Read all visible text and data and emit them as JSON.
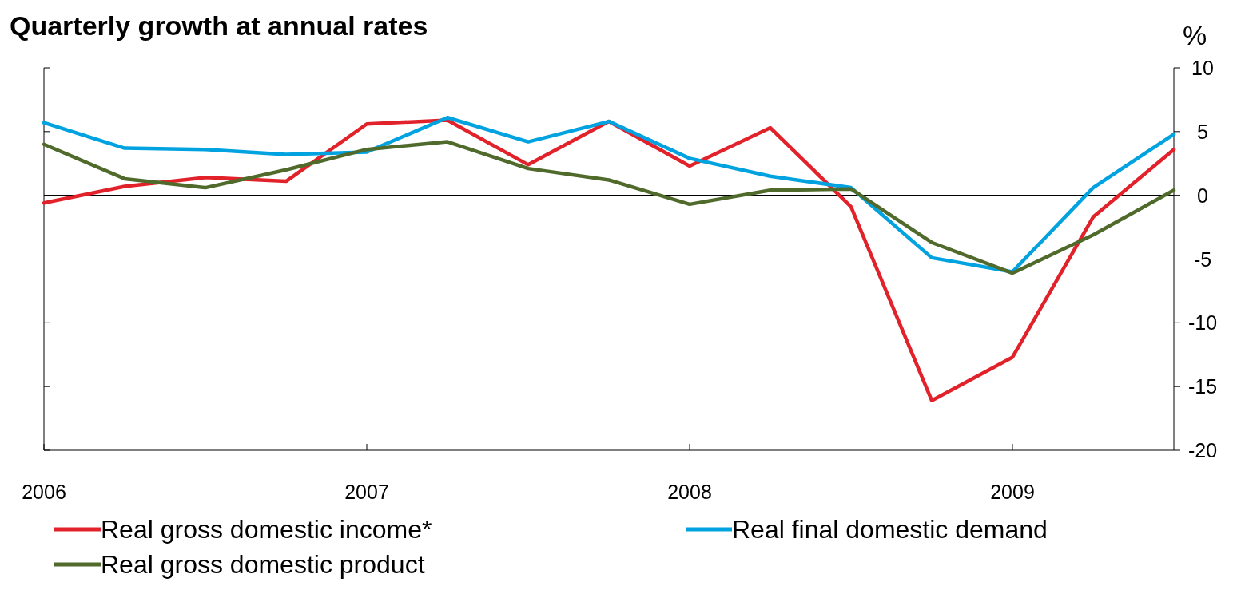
{
  "chart_data": {
    "type": "line",
    "title": "Quarterly growth at annual rates",
    "ylabel": "%",
    "x": [
      2006,
      2006.25,
      2006.5,
      2006.75,
      2007,
      2007.25,
      2007.5,
      2007.75,
      2008,
      2008.25,
      2008.5,
      2008.75,
      2009,
      2009.25,
      2009.5
    ],
    "series": [
      {
        "name": "Real gross domestic income*",
        "color": "#e2222b",
        "values": [
          -0.6,
          0.7,
          1.4,
          1.1,
          5.6,
          5.9,
          2.4,
          5.8,
          2.3,
          5.3,
          -0.9,
          -16.1,
          -12.7,
          -1.7,
          3.6
        ]
      },
      {
        "name": "Real final domestic demand",
        "color": "#00a3e0",
        "values": [
          5.7,
          3.7,
          3.6,
          3.2,
          3.4,
          6.1,
          4.2,
          5.8,
          2.9,
          1.5,
          0.6,
          -4.9,
          -6.0,
          0.6,
          4.8
        ]
      },
      {
        "name": "Real gross domestic product",
        "color": "#4f6a2b",
        "values": [
          4.0,
          1.3,
          0.6,
          2.0,
          3.6,
          4.2,
          2.1,
          1.2,
          -0.7,
          0.4,
          0.5,
          -3.7,
          -6.1,
          -3.1,
          0.4
        ]
      }
    ],
    "xlim": [
      2006,
      2009.5
    ],
    "xticks": [
      2006,
      2007,
      2008,
      2009
    ],
    "ylim": [
      -20,
      10
    ],
    "yticks": [
      -20,
      -15,
      -10,
      -5,
      0,
      5,
      10
    ],
    "ref_lines": [
      {
        "axis": "y",
        "value": 0,
        "color": "#000000"
      }
    ],
    "grid": false,
    "legend": "bottom",
    "line_style": "solid",
    "marker": "none"
  }
}
